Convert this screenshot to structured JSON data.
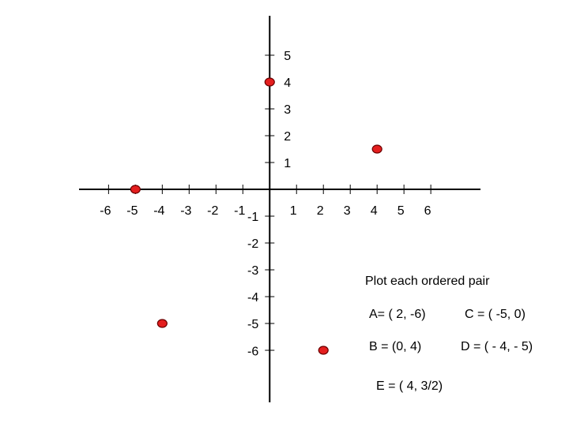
{
  "chart_data": {
    "type": "scatter",
    "xlim": [
      -7.1,
      7.85
    ],
    "ylim": [
      -7.94,
      6.47
    ],
    "xticks": [
      -6,
      -5,
      -4,
      -3,
      -2,
      -1,
      1,
      2,
      3,
      4,
      5,
      6
    ],
    "yticks": [
      -6,
      -5,
      -4,
      -3,
      -2,
      -1,
      1,
      2,
      3,
      4,
      5
    ],
    "series": [
      {
        "color": "#e41e1e",
        "x": [
          2,
          0,
          -5,
          -4,
          4
        ],
        "y": [
          -6,
          4,
          0,
          -5,
          1.5
        ]
      }
    ],
    "annotations": [
      "Plot each ordered pair",
      "A= ( 2, -6)",
      "C = ( -5, 0)",
      "B = (0, 4)",
      "D = ( - 4, - 5)",
      "E = ( 4, 3/2)"
    ]
  }
}
